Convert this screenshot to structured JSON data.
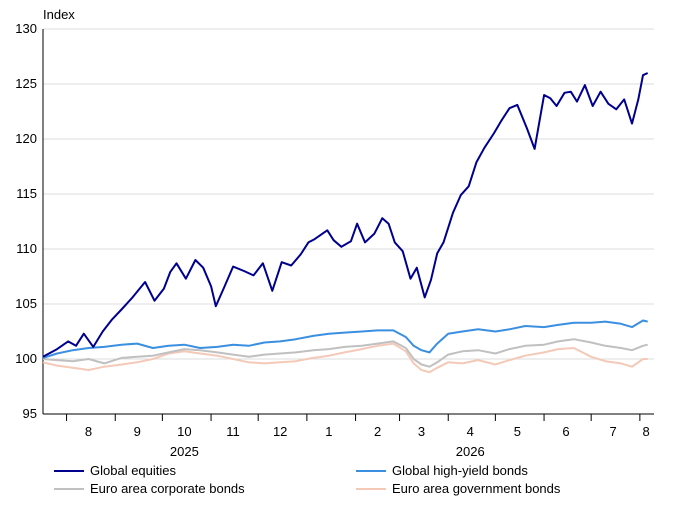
{
  "chart_data": {
    "type": "line",
    "title": "",
    "ylabel": "Index",
    "xlabel": "",
    "ylim": [
      95,
      130
    ],
    "yticks": [
      95,
      100,
      105,
      110,
      115,
      120,
      125,
      130
    ],
    "xlim": [
      "2025-07-17",
      "2026-08-10"
    ],
    "month_ticks": [
      "2025-08-01",
      "2025-09-01",
      "2025-10-01",
      "2025-11-01",
      "2025-12-01",
      "2026-01-01",
      "2026-02-01",
      "2026-03-01",
      "2026-04-01",
      "2026-05-01",
      "2026-06-01",
      "2026-07-01",
      "2026-08-01"
    ],
    "month_labels": [
      {
        "text": "8",
        "date": "2025-08-15"
      },
      {
        "text": "9",
        "date": "2025-09-15"
      },
      {
        "text": "10",
        "date": "2025-10-15"
      },
      {
        "text": "11",
        "date": "2025-11-15"
      },
      {
        "text": "12",
        "date": "2025-12-15"
      },
      {
        "text": "1",
        "date": "2026-01-15"
      },
      {
        "text": "2",
        "date": "2026-02-15"
      },
      {
        "text": "3",
        "date": "2026-03-15"
      },
      {
        "text": "4",
        "date": "2026-04-15"
      },
      {
        "text": "5",
        "date": "2026-05-15"
      },
      {
        "text": "6",
        "date": "2026-06-15"
      },
      {
        "text": "7",
        "date": "2026-07-15"
      },
      {
        "text": "8",
        "date": "2026-08-05"
      }
    ],
    "year_labels": [
      {
        "text": "2025",
        "date": "2025-10-15"
      },
      {
        "text": "2026",
        "date": "2026-04-15"
      }
    ],
    "grid": true,
    "legend_position": "bottom",
    "series": [
      {
        "name": "Global equities",
        "color": "#00008f",
        "x": [
          "2025-07-17",
          "2025-07-26",
          "2025-08-02",
          "2025-08-07",
          "2025-08-12",
          "2025-08-18",
          "2025-08-24",
          "2025-08-30",
          "2025-09-05",
          "2025-09-12",
          "2025-09-20",
          "2025-09-26",
          "2025-10-02",
          "2025-10-06",
          "2025-10-10",
          "2025-10-16",
          "2025-10-22",
          "2025-10-27",
          "2025-11-01",
          "2025-11-04",
          "2025-11-09",
          "2025-11-15",
          "2025-11-22",
          "2025-11-28",
          "2025-12-04",
          "2025-12-10",
          "2025-12-16",
          "2025-12-22",
          "2025-12-28",
          "2026-01-02",
          "2026-01-06",
          "2026-01-11",
          "2026-01-14",
          "2026-01-18",
          "2026-01-23",
          "2026-01-29",
          "2026-02-02",
          "2026-02-07",
          "2026-02-13",
          "2026-02-18",
          "2026-02-22",
          "2026-02-26",
          "2026-03-03",
          "2026-03-08",
          "2026-03-12",
          "2026-03-17",
          "2026-03-21",
          "2026-03-25",
          "2026-03-29",
          "2026-04-04",
          "2026-04-09",
          "2026-04-14",
          "2026-04-19",
          "2026-04-24",
          "2026-04-30",
          "2026-05-05",
          "2026-05-10",
          "2026-05-15",
          "2026-05-21",
          "2026-05-26",
          "2026-06-01",
          "2026-06-05",
          "2026-06-09",
          "2026-06-14",
          "2026-06-18",
          "2026-06-22",
          "2026-06-27",
          "2026-07-02",
          "2026-07-07",
          "2026-07-12",
          "2026-07-17",
          "2026-07-22",
          "2026-07-27",
          "2026-07-31",
          "2026-08-03",
          "2026-08-06"
        ],
        "values": [
          100.2,
          100.9,
          101.6,
          101.2,
          102.3,
          101.1,
          102.5,
          103.6,
          104.5,
          105.6,
          107.0,
          105.3,
          106.4,
          107.9,
          108.7,
          107.3,
          109.0,
          108.3,
          106.6,
          104.8,
          106.4,
          108.4,
          108.0,
          107.6,
          108.7,
          106.2,
          108.8,
          108.5,
          109.5,
          110.6,
          110.9,
          111.4,
          111.7,
          110.8,
          110.2,
          110.7,
          112.3,
          110.6,
          111.4,
          112.8,
          112.3,
          110.6,
          109.8,
          107.3,
          108.3,
          105.6,
          107.2,
          109.6,
          110.6,
          113.3,
          114.9,
          115.7,
          117.9,
          119.2,
          120.5,
          121.7,
          122.8,
          123.1,
          121.0,
          119.1,
          124.0,
          123.7,
          123.0,
          124.2,
          124.3,
          123.4,
          124.9,
          123.0,
          124.3,
          123.2,
          122.7,
          123.6,
          121.4,
          123.6,
          125.8,
          126.0
        ]
      },
      {
        "name": "Global high-yield bonds",
        "color": "#3b8fe0",
        "x": [
          "2025-07-17",
          "2025-07-26",
          "2025-08-05",
          "2025-08-15",
          "2025-08-25",
          "2025-09-05",
          "2025-09-15",
          "2025-09-25",
          "2025-10-05",
          "2025-10-15",
          "2025-10-25",
          "2025-11-05",
          "2025-11-15",
          "2025-11-25",
          "2025-12-05",
          "2025-12-15",
          "2025-12-25",
          "2026-01-05",
          "2026-01-15",
          "2026-01-25",
          "2026-02-05",
          "2026-02-15",
          "2026-02-25",
          "2026-03-05",
          "2026-03-10",
          "2026-03-15",
          "2026-03-20",
          "2026-03-25",
          "2026-04-01",
          "2026-04-10",
          "2026-04-20",
          "2026-05-01",
          "2026-05-10",
          "2026-05-20",
          "2026-06-01",
          "2026-06-10",
          "2026-06-20",
          "2026-07-01",
          "2026-07-10",
          "2026-07-20",
          "2026-07-27",
          "2026-08-03",
          "2026-08-06"
        ],
        "values": [
          100.1,
          100.5,
          100.8,
          101.0,
          101.1,
          101.3,
          101.4,
          101.0,
          101.2,
          101.3,
          101.0,
          101.1,
          101.3,
          101.2,
          101.5,
          101.6,
          101.8,
          102.1,
          102.3,
          102.4,
          102.5,
          102.6,
          102.6,
          102.0,
          101.2,
          100.8,
          100.6,
          101.4,
          102.3,
          102.5,
          102.7,
          102.5,
          102.7,
          103.0,
          102.9,
          103.1,
          103.3,
          103.3,
          103.4,
          103.2,
          102.9,
          103.5,
          103.4
        ]
      },
      {
        "name": "Euro area corporate bonds",
        "color": "#c0c0c0",
        "x": [
          "2025-07-17",
          "2025-07-26",
          "2025-08-05",
          "2025-08-15",
          "2025-08-25",
          "2025-09-05",
          "2025-09-15",
          "2025-09-25",
          "2025-10-05",
          "2025-10-15",
          "2025-10-25",
          "2025-11-05",
          "2025-11-15",
          "2025-11-25",
          "2025-12-05",
          "2025-12-15",
          "2025-12-25",
          "2026-01-05",
          "2026-01-15",
          "2026-01-25",
          "2026-02-05",
          "2026-02-15",
          "2026-02-25",
          "2026-03-05",
          "2026-03-10",
          "2026-03-15",
          "2026-03-20",
          "2026-03-25",
          "2026-04-01",
          "2026-04-10",
          "2026-04-20",
          "2026-05-01",
          "2026-05-10",
          "2026-05-20",
          "2026-06-01",
          "2026-06-10",
          "2026-06-20",
          "2026-07-01",
          "2026-07-10",
          "2026-07-20",
          "2026-07-27",
          "2026-08-03",
          "2026-08-06"
        ],
        "values": [
          100.0,
          99.9,
          99.8,
          100.0,
          99.6,
          100.1,
          100.2,
          100.3,
          100.6,
          100.9,
          100.8,
          100.6,
          100.4,
          100.2,
          100.4,
          100.5,
          100.6,
          100.8,
          100.9,
          101.1,
          101.2,
          101.4,
          101.6,
          101.0,
          100.0,
          99.5,
          99.3,
          99.7,
          100.4,
          100.7,
          100.8,
          100.5,
          100.9,
          101.2,
          101.3,
          101.6,
          101.8,
          101.5,
          101.2,
          101.0,
          100.8,
          101.2,
          101.3
        ]
      },
      {
        "name": "Euro area government bonds",
        "color": "#f4c9b8",
        "x": [
          "2025-07-17",
          "2025-07-26",
          "2025-08-05",
          "2025-08-15",
          "2025-08-25",
          "2025-09-05",
          "2025-09-15",
          "2025-09-25",
          "2025-10-05",
          "2025-10-15",
          "2025-10-25",
          "2025-11-05",
          "2025-11-15",
          "2025-11-25",
          "2025-12-05",
          "2025-12-15",
          "2025-12-25",
          "2026-01-05",
          "2026-01-15",
          "2026-01-25",
          "2026-02-05",
          "2026-02-15",
          "2026-02-25",
          "2026-03-05",
          "2026-03-10",
          "2026-03-15",
          "2026-03-20",
          "2026-03-25",
          "2026-04-01",
          "2026-04-10",
          "2026-04-20",
          "2026-05-01",
          "2026-05-10",
          "2026-05-20",
          "2026-06-01",
          "2026-06-10",
          "2026-06-20",
          "2026-07-01",
          "2026-07-10",
          "2026-07-20",
          "2026-07-27",
          "2026-08-03",
          "2026-08-06"
        ],
        "values": [
          99.7,
          99.4,
          99.2,
          99.0,
          99.3,
          99.5,
          99.7,
          100.0,
          100.5,
          100.7,
          100.5,
          100.3,
          100.0,
          99.7,
          99.6,
          99.7,
          99.8,
          100.1,
          100.3,
          100.6,
          100.9,
          101.2,
          101.4,
          100.7,
          99.6,
          99.0,
          98.8,
          99.2,
          99.7,
          99.6,
          99.9,
          99.5,
          99.9,
          100.3,
          100.6,
          100.9,
          101.0,
          100.2,
          99.8,
          99.6,
          99.3,
          100.0,
          100.0
        ]
      }
    ]
  }
}
